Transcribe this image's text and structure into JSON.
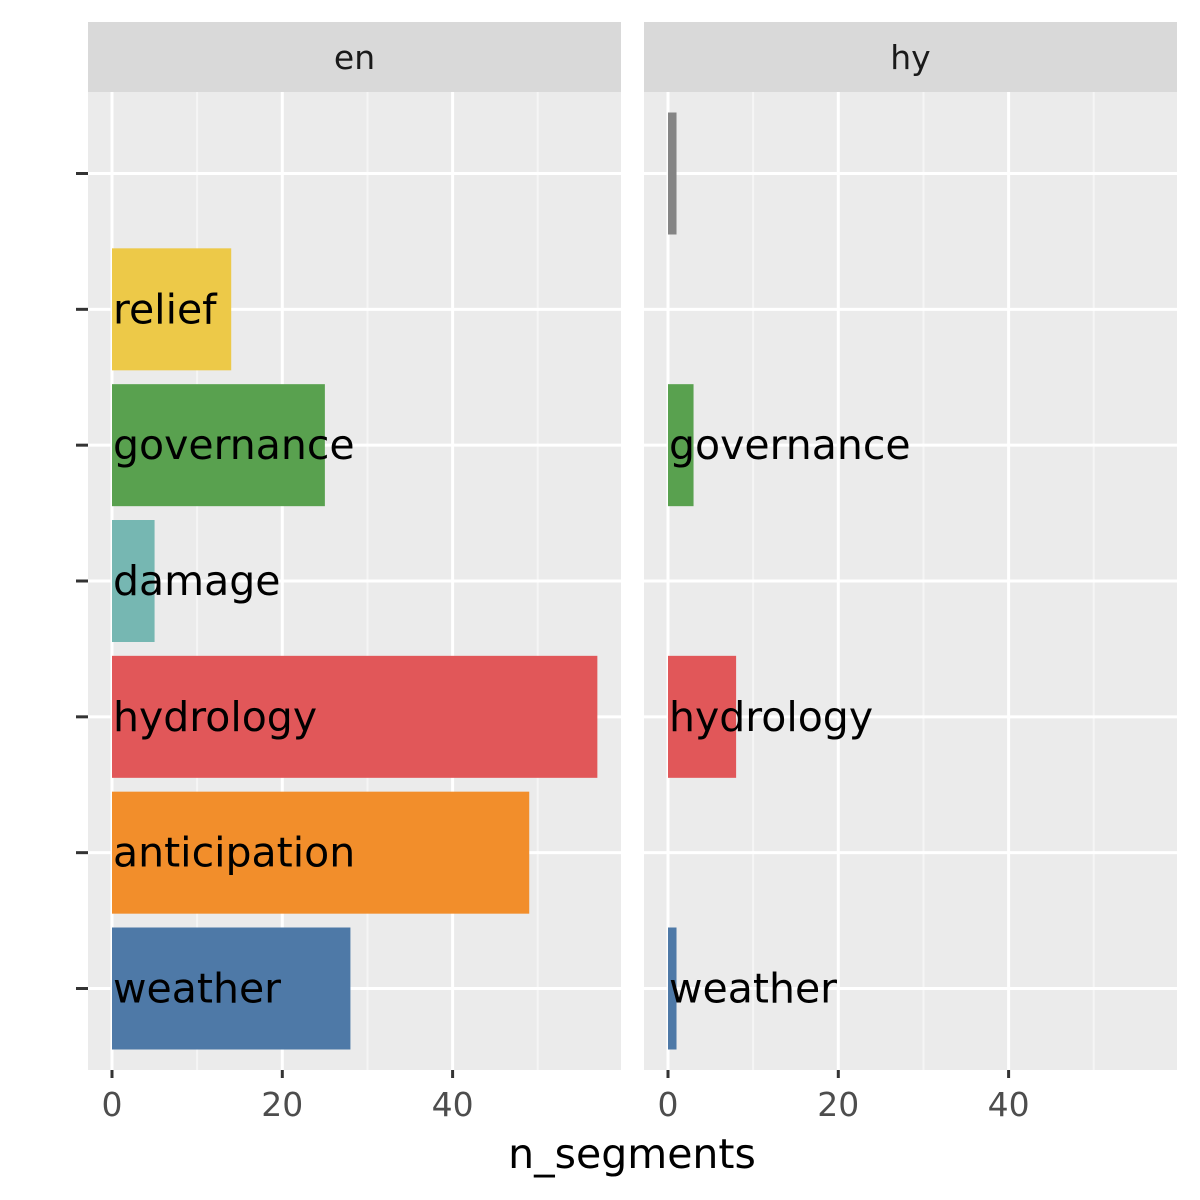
{
  "chart_data": {
    "type": "bar",
    "orientation": "horizontal",
    "faceted": true,
    "xlabel": "n_segments",
    "ylabel": "",
    "xlim": [
      0,
      60
    ],
    "xticks": [
      0,
      20,
      40
    ],
    "grid": true,
    "legend": "none",
    "categories": [
      "",
      "relief",
      "governance",
      "damage",
      "hydrology",
      "anticipation",
      "weather"
    ],
    "category_colors": {
      "": "#858585",
      "relief": "#edc948",
      "governance": "#59a14f",
      "damage": "#76b7b2",
      "hydrology": "#e15759",
      "anticipation": "#f28e2b",
      "weather": "#4e79a7"
    },
    "panels": [
      {
        "facet": "en",
        "bars": [
          {
            "category": "relief",
            "value": 14
          },
          {
            "category": "governance",
            "value": 25
          },
          {
            "category": "damage",
            "value": 5
          },
          {
            "category": "hydrology",
            "value": 57
          },
          {
            "category": "anticipation",
            "value": 49
          },
          {
            "category": "weather",
            "value": 28
          }
        ]
      },
      {
        "facet": "hy",
        "bars": [
          {
            "category": "",
            "value": 1
          },
          {
            "category": "governance",
            "value": 3
          },
          {
            "category": "hydrology",
            "value": 8
          },
          {
            "category": "weather",
            "value": 1
          }
        ]
      }
    ]
  },
  "colors": {
    "panel_background": "#ebebeb",
    "strip_background": "#d9d9d9",
    "grid_major": "#ffffff",
    "grid_minor": "#f5f5f5"
  }
}
